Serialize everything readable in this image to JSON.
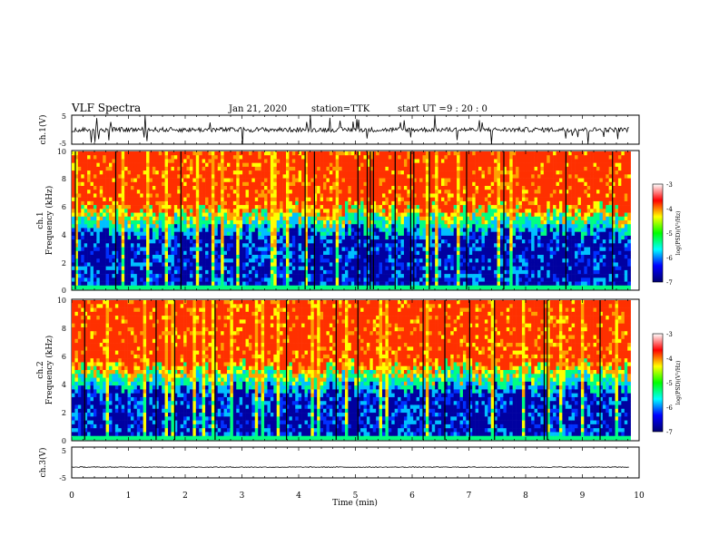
{
  "header": {
    "title": "VLF Spectra",
    "date": "Jan 21, 2020",
    "station": "station=TTK",
    "start_label": "start UT =",
    "start_value": "9 : 20 : 0"
  },
  "colors": {
    "spectrogram": [
      "#0000a0",
      "#0030ff",
      "#00c0ff",
      "#00ff80",
      "#ffff00",
      "#ffa000",
      "#ff3000"
    ],
    "colorbar": [
      "#000070",
      "#0000ff",
      "#00ffff",
      "#00ff00",
      "#ffff00",
      "#ff0000",
      "#ffffff"
    ],
    "trace": "#000000"
  },
  "chart_data": [
    {
      "type": "line",
      "panel": "ch1-waveform",
      "ylabel": "ch.1(V)",
      "ylim": [
        -5,
        5
      ],
      "yticks": [
        "5",
        "-5"
      ],
      "xlim": [
        0,
        10
      ],
      "baseline": 0
    },
    {
      "type": "heatmap",
      "panel": "ch1-spectrogram",
      "ylabel_lines": [
        "ch.1",
        "Frequency (kHz)"
      ],
      "ylim": [
        0,
        10
      ],
      "yticks": [
        "0",
        "2",
        "4",
        "6",
        "8",
        "10"
      ],
      "xlim": [
        0,
        9.85
      ],
      "transition_khz": 5,
      "colorbar": {
        "label": "log(PSD)(V²/Hz)",
        "range": [
          -7,
          -3
        ],
        "ticks": [
          "-3",
          "-4",
          "-5",
          "-6",
          "-7"
        ]
      }
    },
    {
      "type": "heatmap",
      "panel": "ch2-spectrogram",
      "ylabel_lines": [
        "ch.2",
        "Frequency (kHz)"
      ],
      "ylim": [
        0,
        10
      ],
      "yticks": [
        "0",
        "2",
        "4",
        "6",
        "8",
        "10"
      ],
      "xlim": [
        0,
        9.85
      ],
      "transition_khz": 4.5,
      "colorbar": {
        "label": "log(PSD)(V²/Hz)",
        "range": [
          -7,
          -3
        ],
        "ticks": [
          "-3",
          "-4",
          "-5",
          "-6",
          "-7"
        ]
      }
    },
    {
      "type": "line",
      "panel": "ch3-waveform",
      "ylabel": "ch.3(V)",
      "ylim": [
        -5,
        5
      ],
      "yticks": [
        "5",
        "-5"
      ],
      "xlim": [
        0,
        10
      ],
      "baseline": -1.5
    }
  ],
  "xaxis": {
    "label": "Time (min)",
    "range": [
      0,
      10
    ],
    "ticks": [
      "0",
      "1",
      "2",
      "3",
      "4",
      "5",
      "6",
      "7",
      "8",
      "9",
      "10"
    ]
  }
}
